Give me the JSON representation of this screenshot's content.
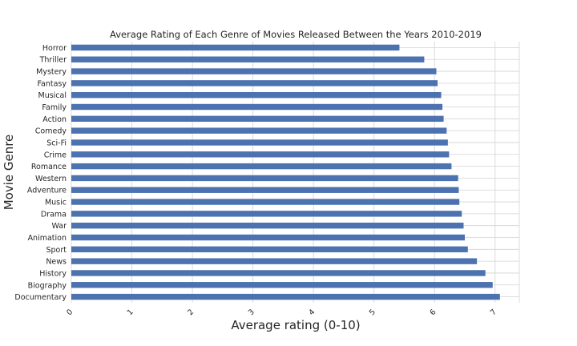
{
  "chart_data": {
    "type": "bar",
    "orientation": "horizontal",
    "title": "Average Rating  of Each Genre of Movies Released Between the Years 2010-2019",
    "xlabel": "Average rating (0-10)",
    "ylabel": "Movie Genre",
    "xlim": [
      0,
      7.4
    ],
    "x_ticks": [
      "0",
      "1",
      "2",
      "3",
      "4",
      "5",
      "6",
      "7"
    ],
    "grid": "vertical",
    "categories": [
      "Horror",
      "Thriller",
      "Mystery",
      "Fantasy",
      "Musical",
      "Family",
      "Action",
      "Comedy",
      "Sci-Fi",
      "Crime",
      "Romance",
      "Western",
      "Adventure",
      "Music",
      "Drama",
      "War",
      "Animation",
      "Sport",
      "News",
      "History",
      "Biography",
      "Documentary"
    ],
    "values": [
      5.42,
      5.83,
      6.03,
      6.05,
      6.11,
      6.13,
      6.15,
      6.2,
      6.22,
      6.24,
      6.28,
      6.39,
      6.4,
      6.41,
      6.45,
      6.48,
      6.5,
      6.55,
      6.7,
      6.84,
      6.96,
      7.08
    ],
    "bar_color": "#4c72b0"
  }
}
